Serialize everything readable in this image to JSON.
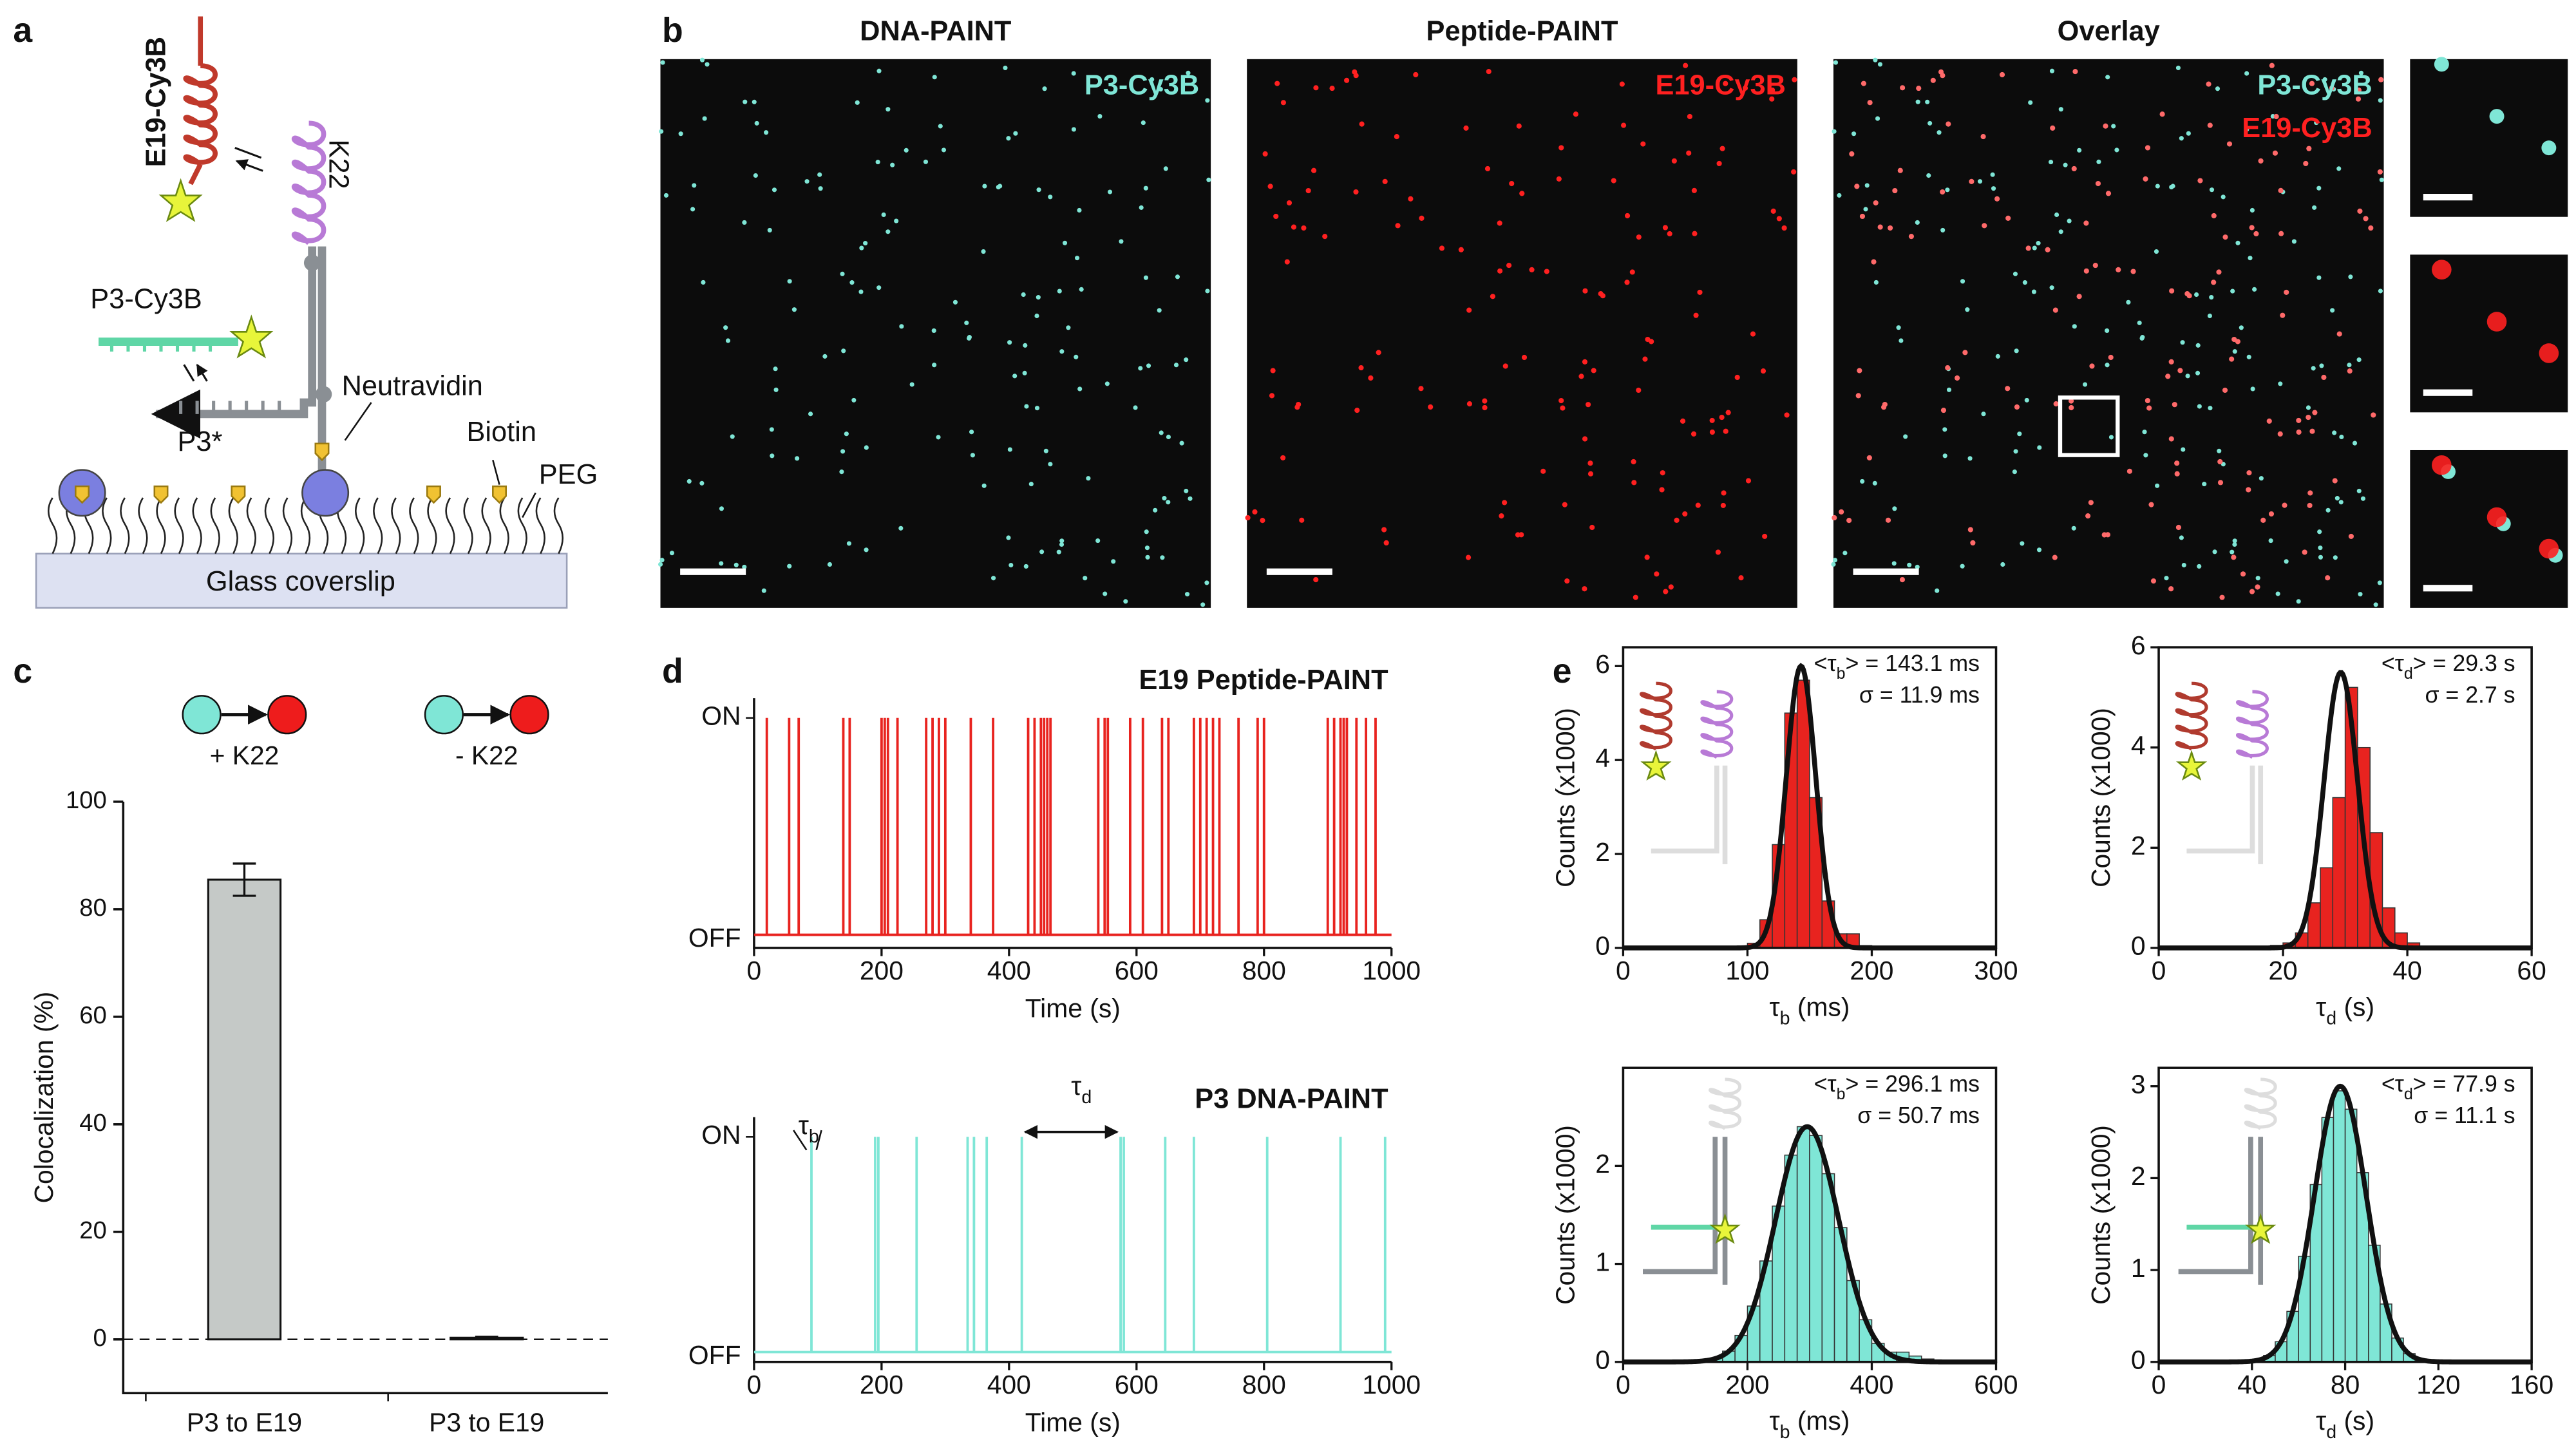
{
  "panel_labels": [
    "a",
    "b",
    "c",
    "d",
    "e"
  ],
  "diagram": {
    "e19": "E19-Cy3B",
    "k22": "K22",
    "p3": "P3-Cy3B",
    "p3star": "P3*",
    "neutravidin": "Neutravidin",
    "biotin": "Biotin",
    "peg": "PEG",
    "glass": "Glass coverslip"
  },
  "images": {
    "titles": [
      "DNA-PAINT",
      "Peptide-PAINT",
      "Overlay"
    ],
    "legend": [
      "P3-Cy3B",
      "E19-Cy3B"
    ],
    "colors": [
      "#7fe6d6",
      "#ff2020"
    ]
  },
  "chart_data": [
    {
      "type": "bar",
      "ylabel": "Colocalization (%)",
      "categories": [
        "P3 to E19",
        "P3 to E19"
      ],
      "conditions": [
        "+ K22",
        "- K22"
      ],
      "values": [
        85.5,
        0.3
      ],
      "errors": [
        3,
        0.2
      ],
      "color": "#c5c9c7",
      "ylim": [
        -10,
        100
      ],
      "yticks": [
        0,
        20,
        40,
        60,
        80,
        100
      ],
      "condition_colors": [
        "#7fe6d6",
        "#ee1c1c"
      ]
    },
    {
      "type": "trace",
      "title": "E19 Peptide-PAINT",
      "xlabel": "Time (s)",
      "xlim": [
        0,
        1000
      ],
      "xticks": [
        0,
        200,
        400,
        600,
        800,
        1000
      ],
      "states": [
        "ON",
        "OFF"
      ],
      "color": "#e8231f",
      "events": [
        20,
        55,
        70,
        140,
        150,
        200,
        205,
        210,
        225,
        270,
        280,
        290,
        300,
        340,
        375,
        430,
        440,
        450,
        455,
        460,
        465,
        540,
        550,
        555,
        590,
        610,
        640,
        650,
        690,
        700,
        710,
        720,
        730,
        760,
        790,
        800,
        900,
        910,
        920,
        925,
        930,
        945,
        960,
        975
      ]
    },
    {
      "type": "trace",
      "title": "P3 DNA-PAINT",
      "xlabel": "Time (s)",
      "xlim": [
        0,
        1000
      ],
      "xticks": [
        0,
        200,
        400,
        600,
        800,
        1000
      ],
      "states": [
        "ON",
        "OFF"
      ],
      "color": "#7fe6d6",
      "events": [
        90,
        190,
        195,
        255,
        335,
        345,
        365,
        420,
        575,
        580,
        645,
        690,
        805,
        920,
        990
      ],
      "annotations": [
        {
          "symbol": "τ",
          "sub": "b"
        },
        {
          "symbol": "τ",
          "sub": "d"
        }
      ]
    },
    {
      "type": "histogram",
      "ylabel": "Counts (x1000)",
      "xlabel": {
        "symbol": "τ",
        "sub": "b",
        "unit": " (ms)"
      },
      "bins": [
        90,
        100,
        110,
        120,
        130,
        140,
        150,
        160,
        170,
        180,
        190,
        200
      ],
      "counts": [
        0.02,
        0.1,
        0.6,
        2.2,
        5.0,
        5.7,
        3.2,
        1.0,
        0.3,
        0.3,
        0.05
      ],
      "color": "#e8231f",
      "xlim": [
        0,
        300
      ],
      "xticks": [
        0,
        100,
        200,
        300
      ],
      "ylim": [
        0,
        6.4
      ],
      "yticks": [
        0,
        2,
        4,
        6
      ],
      "fit": {
        "mean": 143.1,
        "sigma": 11.9,
        "peak": 6.0
      },
      "stats": {
        "mean": {
          "pre": "<τ",
          "sub": "b",
          "post": "> = 143.1 ms"
        },
        "sigma": "σ = 11.9 ms"
      }
    },
    {
      "type": "histogram",
      "ylabel": "Counts (x1000)",
      "xlabel": {
        "symbol": "τ",
        "sub": "d",
        "unit": " (s)"
      },
      "bins": [
        18,
        20,
        22,
        24,
        26,
        28,
        30,
        32,
        34,
        36,
        38,
        40,
        42
      ],
      "counts": [
        0.05,
        0.1,
        0.3,
        0.9,
        1.6,
        3.0,
        5.2,
        4.0,
        2.3,
        0.8,
        0.3,
        0.1
      ],
      "color": "#e8231f",
      "xlim": [
        0,
        60
      ],
      "xticks": [
        0,
        20,
        40,
        60
      ],
      "ylim": [
        0,
        6
      ],
      "yticks": [
        0,
        2,
        4,
        6
      ],
      "fit": {
        "mean": 29.3,
        "sigma": 2.7,
        "peak": 5.5
      },
      "stats": {
        "mean": {
          "pre": "<τ",
          "sub": "d",
          "post": "> = 29.3 s"
        },
        "sigma": "σ = 2.7 s"
      }
    },
    {
      "type": "histogram",
      "ylabel": "Counts (x1000)",
      "xlabel": {
        "symbol": "τ",
        "sub": "b",
        "unit": " (ms)"
      },
      "bins": [
        140,
        160,
        180,
        200,
        220,
        240,
        260,
        280,
        300,
        320,
        340,
        360,
        380,
        400,
        420,
        440,
        460,
        480,
        500,
        520
      ],
      "counts": [
        0.04,
        0.11,
        0.27,
        0.57,
        1.03,
        1.59,
        2.11,
        2.4,
        2.31,
        1.92,
        1.37,
        0.83,
        0.43,
        0.19,
        0.1,
        0.1,
        0.06,
        0.03,
        0.02
      ],
      "color": "#7fe6d6",
      "xlim": [
        0,
        600
      ],
      "xticks": [
        0,
        200,
        400,
        600
      ],
      "ylim": [
        0,
        3.0
      ],
      "yticks": [
        0,
        1,
        2
      ],
      "fit": {
        "mean": 296.1,
        "sigma": 50.7,
        "peak": 2.4
      },
      "stats": {
        "mean": {
          "pre": "<τ",
          "sub": "b",
          "post": "> = 296.1 ms"
        },
        "sigma": "σ = 50.7 ms"
      }
    },
    {
      "type": "histogram",
      "ylabel": "Counts (x1000)",
      "xlabel": {
        "symbol": "τ",
        "sub": "d",
        "unit": " (s)"
      },
      "bins": [
        40,
        45,
        50,
        55,
        60,
        65,
        70,
        75,
        80,
        85,
        90,
        95,
        100,
        105,
        110,
        115,
        120
      ],
      "counts": [
        0.02,
        0.07,
        0.22,
        0.55,
        1.15,
        1.93,
        2.66,
        2.95,
        2.75,
        2.06,
        1.27,
        0.63,
        0.26,
        0.09,
        0.03,
        0.01
      ],
      "color": "#7fe6d6",
      "xlim": [
        0,
        160
      ],
      "xticks": [
        0,
        40,
        80,
        120,
        160
      ],
      "ylim": [
        0,
        3.2
      ],
      "yticks": [
        0,
        1,
        2,
        3
      ],
      "fit": {
        "mean": 77.9,
        "sigma": 11.1,
        "peak": 3.0
      },
      "stats": {
        "mean": {
          "pre": "<τ",
          "sub": "d",
          "post": "> = 77.9 s"
        },
        "sigma": "σ = 11.1 s"
      }
    }
  ]
}
